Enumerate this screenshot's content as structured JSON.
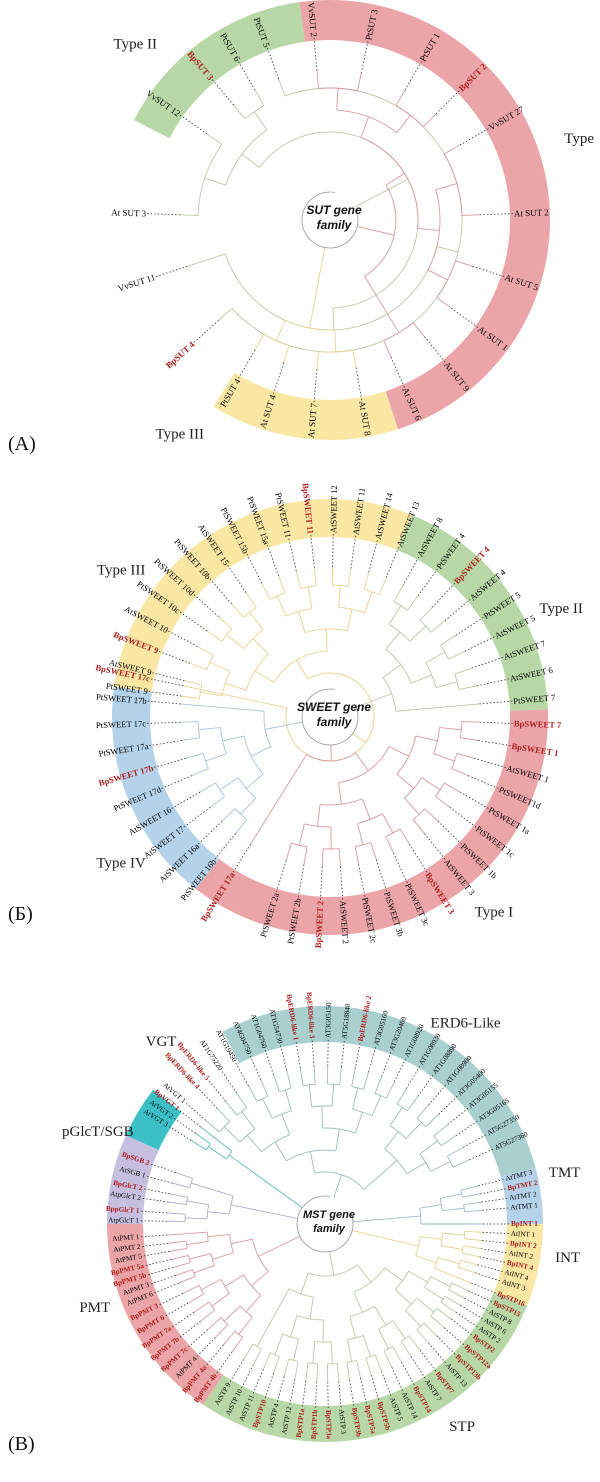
{
  "panels": [
    {
      "id": "A",
      "letter": "(A)",
      "center_label": [
        "SUT gene",
        "family"
      ],
      "colors": {
        "Type II": "#b7d8a6",
        "Type I": "#eba5a8",
        "Type III": "#fbe7a4"
      },
      "groups": [
        {
          "name": "Type II",
          "start": -63,
          "end": -8,
          "color": "#b7d8a6",
          "line": "#b9c9a8"
        },
        {
          "name": "Type",
          "start": -8,
          "end": 162,
          "color": "#eba5a8",
          "line": "#d99aa0"
        },
        {
          "name": "Type III",
          "start": 162,
          "end": 212,
          "color": "#fbe7a4",
          "line": "#e8d290"
        }
      ],
      "group_labels": [
        {
          "text": "Type II",
          "angle": -48
        },
        {
          "text": "Type",
          "angle": 72
        },
        {
          "text": "Type III",
          "angle": 215
        }
      ],
      "leaves": [
        {
          "label": "PtSUT 5",
          "angle": -20,
          "bp": false
        },
        {
          "label": "PtSUT 6",
          "angle": -30,
          "bp": false
        },
        {
          "label": "BpSUT 3",
          "angle": -40,
          "bp": true
        },
        {
          "label": "VvSUT 12",
          "angle": -55,
          "bp": false
        },
        {
          "label": "At SUT 3",
          "angle": -88,
          "bp": false
        },
        {
          "label": "VvSUT 2",
          "angle": -5,
          "bp": false
        },
        {
          "label": "PtSUT 3",
          "angle": 12,
          "bp": false
        },
        {
          "label": "PtSUT 1",
          "angle": 30,
          "bp": false
        },
        {
          "label": "BpSUT 2",
          "angle": 45,
          "bp": true
        },
        {
          "label": "VvSUT 27",
          "angle": 60,
          "bp": false
        },
        {
          "label": "At SUT 2",
          "angle": 88,
          "bp": false
        },
        {
          "label": "At SUT 5",
          "angle": 108,
          "bp": false
        },
        {
          "label": "At SUT 1",
          "angle": 126,
          "bp": false
        },
        {
          "label": "At SUT 9",
          "angle": 141,
          "bp": false
        },
        {
          "label": "At SUT 6",
          "angle": 156,
          "bp": false
        },
        {
          "label": "At SUT 8",
          "angle": 170,
          "bp": false
        },
        {
          "label": "At SUT 7",
          "angle": 185,
          "bp": false
        },
        {
          "label": "At SUT 4",
          "angle": 198,
          "bp": false
        },
        {
          "label": "PtSUT 4",
          "angle": 210,
          "bp": false
        },
        {
          "label": "BpSUT 4",
          "angle": 228,
          "bp": true
        },
        {
          "label": "VvSUT 11",
          "angle": 252,
          "bp": false
        }
      ]
    },
    {
      "id": "B",
      "letter": "(Б)",
      "center_label": [
        "SWEET gene",
        "family"
      ],
      "colors": {
        "Type III": "#fbe7a4",
        "Type II": "#b7d8a6",
        "Type I": "#eba5a8",
        "Type IV": "#b4d2ea"
      },
      "groups": [
        {
          "name": "Type III",
          "start": -82,
          "end": 22,
          "color": "#fbe7a4",
          "line": "#e8d290"
        },
        {
          "name": "Type II",
          "start": 22,
          "end": 88,
          "color": "#b7d8a6",
          "line": "#b9c9a8"
        },
        {
          "name": "Type I",
          "start": 88,
          "end": 218,
          "color": "#eba5a8",
          "line": "#d99aa0"
        },
        {
          "name": "Type IV",
          "start": 218,
          "end": 278,
          "color": "#b4d2ea",
          "line": "#a9c1d8"
        }
      ],
      "group_labels": [
        {
          "text": "Type III",
          "angle": -55
        },
        {
          "text": "Type II",
          "angle": 65
        },
        {
          "text": "Type I",
          "angle": 140
        },
        {
          "text": "Type IV",
          "angle": 235
        }
      ],
      "leaves": [
        {
          "label": "PtSWEET 9",
          "angle": -82,
          "bp": false
        },
        {
          "label": "AtSWEET 9",
          "angle": -76,
          "bp": false
        },
        {
          "label": "BpSWEET 9",
          "angle": -69,
          "bp": true
        },
        {
          "label": "AtSWEET 10",
          "angle": -62,
          "bp": false
        },
        {
          "label": "PtSWEET 10c",
          "angle": -55,
          "bp": false
        },
        {
          "label": "PtSWEET 10d",
          "angle": -48,
          "bp": false
        },
        {
          "label": "PtSWEET 10b",
          "angle": -41,
          "bp": false
        },
        {
          "label": "AtSWEET 15",
          "angle": -34,
          "bp": false
        },
        {
          "label": "PtSWEET 15b",
          "angle": -27,
          "bp": false
        },
        {
          "label": "PtSWEET 15a",
          "angle": -20,
          "bp": false
        },
        {
          "label": "PtSWEET 11",
          "angle": -13,
          "bp": false
        },
        {
          "label": "BpSWEET 11",
          "angle": -6,
          "bp": true
        },
        {
          "label": "AtSWEET 12",
          "angle": 1,
          "bp": false
        },
        {
          "label": "AtSWEET 11",
          "angle": 8,
          "bp": false
        },
        {
          "label": "AtSWEET 14",
          "angle": 15,
          "bp": false
        },
        {
          "label": "AtSWEET 13",
          "angle": 22,
          "bp": false
        },
        {
          "label": "AtSWEET 8",
          "angle": 29,
          "bp": false
        },
        {
          "label": "PtSWEET 4",
          "angle": 36,
          "bp": false
        },
        {
          "label": "BpSWEET 4",
          "angle": 43,
          "bp": true
        },
        {
          "label": "AtSWEET 4",
          "angle": 50,
          "bp": false
        },
        {
          "label": "PtSWEET 5",
          "angle": 57,
          "bp": false
        },
        {
          "label": "AtSWEET 5",
          "angle": 64,
          "bp": false
        },
        {
          "label": "AtSWEET 7",
          "angle": 71,
          "bp": false
        },
        {
          "label": "AtSWEET 6",
          "angle": 78,
          "bp": false
        },
        {
          "label": "PtSWEET 7",
          "angle": 85,
          "bp": false
        },
        {
          "label": "BpSWEET 7",
          "angle": 92,
          "bp": true
        },
        {
          "label": "BpSWEET 1",
          "angle": 99,
          "bp": true
        },
        {
          "label": "AtSWEET 1",
          "angle": 106,
          "bp": false
        },
        {
          "label": "PtSWEET1d",
          "angle": 113,
          "bp": false
        },
        {
          "label": "PtSWEET 1a",
          "angle": 120,
          "bp": false
        },
        {
          "label": "PtSWEET 1c",
          "angle": 127,
          "bp": false
        },
        {
          "label": "PtSWEET 1b",
          "angle": 134,
          "bp": false
        },
        {
          "label": "AtSWEET 3",
          "angle": 141,
          "bp": false
        },
        {
          "label": "BpSWEET 3",
          "angle": 148,
          "bp": true
        },
        {
          "label": "PtSWEET 3c",
          "angle": 155,
          "bp": false
        },
        {
          "label": "PtSWEET 3b",
          "angle": 162,
          "bp": false
        },
        {
          "label": "PtSWEET 2c",
          "angle": 169,
          "bp": false
        },
        {
          "label": "AtSWEET 2",
          "angle": 176,
          "bp": false
        },
        {
          "label": "BpSWEET 2",
          "angle": 183,
          "bp": true
        },
        {
          "label": "PtSWEET 2b",
          "angle": 190,
          "bp": false
        },
        {
          "label": "PtSWEET 2a",
          "angle": 197,
          "bp": false
        },
        {
          "label": "BpSWEET 17a",
          "angle": 212,
          "bp": true
        },
        {
          "label": "PtSWEET 16b",
          "angle": 219,
          "bp": false
        },
        {
          "label": "AtSWEET 16a",
          "angle": 226,
          "bp": false
        },
        {
          "label": "AtSWEET 17",
          "angle": 233,
          "bp": false
        },
        {
          "label": "AtSWEET 16",
          "angle": 240,
          "bp": false
        },
        {
          "label": "PtSWEET 17d",
          "angle": 247,
          "bp": false
        },
        {
          "label": "BpSWEET 17b",
          "angle": 254,
          "bp": true
        },
        {
          "label": "PtSWEET 17a",
          "angle": 261,
          "bp": false
        },
        {
          "label": "PtSWEET 17c",
          "angle": 268,
          "bp": false
        },
        {
          "label": "PtSWEET 17b",
          "angle": 275,
          "bp": false
        },
        {
          "label": "BpSWEET 17c",
          "angle": 282,
          "bp": true
        }
      ]
    },
    {
      "id": "C",
      "letter": "(B)",
      "center_label": [
        "MST gene",
        "family"
      ],
      "colors": {
        "ERD6-Like": "#a9cfcf",
        "TMT": "#b4d2ea",
        "INT": "#fbe7a4",
        "STP": "#b7d8a6",
        "PMT": "#eba5a8",
        "pGlcT/SGB": "#c7bfe0",
        "VGT": "#3cc0c8"
      },
      "groups": [
        {
          "name": "ERD6-Like",
          "start": -28,
          "end": 75,
          "color": "#a9cfcf",
          "line": "#9fbcbc"
        },
        {
          "name": "TMT",
          "start": 75,
          "end": 90,
          "color": "#b4d2ea",
          "line": "#9eb8d0"
        },
        {
          "name": "INT",
          "start": 90,
          "end": 112,
          "color": "#fbe7a4",
          "line": "#e8d290"
        },
        {
          "name": "STP",
          "start": 112,
          "end": 214,
          "color": "#b7d8a6",
          "line": "#b9c9a8"
        },
        {
          "name": "PMT",
          "start": 214,
          "end": 270,
          "color": "#eba5a8",
          "line": "#d99aa0"
        },
        {
          "name": "pGlcT/SGB",
          "start": 270,
          "end": 294,
          "color": "#c7bfe0",
          "line": "#b6a9d2"
        },
        {
          "name": "VGT",
          "start": 294,
          "end": 308,
          "color": "#3cc0c8",
          "line": "#5fb9b9"
        }
      ],
      "group_labels": [
        {
          "text": "ERD6-Like",
          "angle": 35
        },
        {
          "text": "TMT",
          "angle": 78
        },
        {
          "text": "INT",
          "angle": 98
        },
        {
          "text": "STP",
          "angle": 146
        },
        {
          "text": "PMT",
          "angle": 250
        },
        {
          "text": "pGlcT/SGB",
          "angle": 292
        },
        {
          "text": "VGT",
          "angle": 318
        }
      ],
      "leaves": [
        {
          "label": "AtVGT 3",
          "angle": -58,
          "bp": false
        },
        {
          "label": "AtVGT 2",
          "angle": -55,
          "bp": false
        },
        {
          "label": "BpVGT 1",
          "angle": -52,
          "bp": true
        },
        {
          "label": "AtVGT 1",
          "angle": -49,
          "bp": false
        },
        {
          "label": "BpERD6-like 4",
          "angle": -43,
          "bp": true
        },
        {
          "label": "BpERD6-like 5",
          "angle": -39,
          "bp": true
        },
        {
          "label": "AT1G75220",
          "angle": -34,
          "bp": false
        },
        {
          "label": "AT1G19450",
          "angle": -29,
          "bp": false
        },
        {
          "label": "AT4G04750",
          "angle": -24,
          "bp": false
        },
        {
          "label": "AT1G04760",
          "angle": -19,
          "bp": false
        },
        {
          "label": "AT1G54730",
          "angle": -14,
          "bp": false
        },
        {
          "label": "BpERD6-like 1",
          "angle": -9,
          "bp": true
        },
        {
          "label": "BpERD6-like 3",
          "angle": -4,
          "bp": true
        },
        {
          "label": "AT3G05150",
          "angle": 1,
          "bp": false
        },
        {
          "label": "AT5G18840",
          "angle": 6,
          "bp": false
        },
        {
          "label": "BpERD6-like 2",
          "angle": 11,
          "bp": true
        },
        {
          "label": "AT3G05160",
          "angle": 16,
          "bp": false
        },
        {
          "label": "AT3G20460",
          "angle": 21,
          "bp": false
        },
        {
          "label": "AT1G08920",
          "angle": 26,
          "bp": false
        },
        {
          "label": "AT1G08930",
          "angle": 31,
          "bp": false
        },
        {
          "label": "AT1G08890",
          "angle": 36,
          "bp": false
        },
        {
          "label": "AT1G08900",
          "angle": 41,
          "bp": false
        },
        {
          "label": "AT3G05400",
          "angle": 46,
          "bp": false
        },
        {
          "label": "AT3G05155",
          "angle": 51,
          "bp": false
        },
        {
          "label": "AT3G05165",
          "angle": 56,
          "bp": false
        },
        {
          "label": "AT5G27350",
          "angle": 61,
          "bp": false
        },
        {
          "label": "AT5G27360",
          "angle": 66,
          "bp": false
        },
        {
          "label": "AtTMT 3",
          "angle": 76,
          "bp": false
        },
        {
          "label": "BpTMT 2",
          "angle": 79,
          "bp": true
        },
        {
          "label": "AtTMT 2",
          "angle": 82,
          "bp": false
        },
        {
          "label": "AtTMT 1",
          "angle": 85,
          "bp": false
        },
        {
          "label": "BpINT 1",
          "angle": 90,
          "bp": true
        },
        {
          "label": "AtINT 1",
          "angle": 93,
          "bp": false
        },
        {
          "label": "BpINT 2",
          "angle": 96,
          "bp": true
        },
        {
          "label": "AtINT 2",
          "angle": 99,
          "bp": false
        },
        {
          "label": "BpINT 4",
          "angle": 102,
          "bp": true
        },
        {
          "label": "AtINT 4",
          "angle": 105,
          "bp": false
        },
        {
          "label": "AtINT 3",
          "angle": 108,
          "bp": false
        },
        {
          "label": "BpSTP16",
          "angle": 112,
          "bp": true
        },
        {
          "label": "BpSTP15",
          "angle": 115,
          "bp": true
        },
        {
          "label": "AtSTP 8",
          "angle": 118,
          "bp": false
        },
        {
          "label": "AtSTP 6",
          "angle": 121,
          "bp": false
        },
        {
          "label": "AtSTP 2",
          "angle": 124,
          "bp": false
        },
        {
          "label": "BpSTP2",
          "angle": 127,
          "bp": true
        },
        {
          "label": "BpSTP12a",
          "angle": 131,
          "bp": true
        },
        {
          "label": "BpSTP13b",
          "angle": 135,
          "bp": true
        },
        {
          "label": "AtSTP 13",
          "angle": 139,
          "bp": false
        },
        {
          "label": "BpSTP7",
          "angle": 143,
          "bp": true
        },
        {
          "label": "AtSTP 7",
          "angle": 147,
          "bp": false
        },
        {
          "label": "BpSTP14",
          "angle": 151,
          "bp": true
        },
        {
          "label": "AtSTP 14",
          "angle": 155,
          "bp": false
        },
        {
          "label": "AtSTP 5",
          "angle": 159,
          "bp": false
        },
        {
          "label": "BpSTP5b",
          "angle": 163,
          "bp": true
        },
        {
          "label": "BpSTP5a",
          "angle": 167,
          "bp": true
        },
        {
          "label": "BpSTP3b",
          "angle": 171,
          "bp": true
        },
        {
          "label": "AtSTP 3",
          "angle": 175,
          "bp": false
        },
        {
          "label": "BpSTP3a",
          "angle": 179,
          "bp": true
        },
        {
          "label": "BpSTP1b",
          "angle": 183,
          "bp": true
        },
        {
          "label": "BpSTP1a",
          "angle": 187,
          "bp": true
        },
        {
          "label": "AtSTP 12",
          "angle": 191,
          "bp": false
        },
        {
          "label": "AtSTP 4",
          "angle": 195,
          "bp": false
        },
        {
          "label": "BpSTP10",
          "angle": 199,
          "bp": true
        },
        {
          "label": "AtSTP 11",
          "angle": 203,
          "bp": false
        },
        {
          "label": "AtSTP 10",
          "angle": 207,
          "bp": false
        },
        {
          "label": "AtSTP 9",
          "angle": 211,
          "bp": false
        },
        {
          "label": "BpPMT 4b",
          "angle": 216,
          "bp": true
        },
        {
          "label": "BpPMT 4a",
          "angle": 220,
          "bp": true
        },
        {
          "label": "AtPMT 4",
          "angle": 224,
          "bp": false
        },
        {
          "label": "BpPMT 7c",
          "angle": 228,
          "bp": true
        },
        {
          "label": "BpPMT 7b",
          "angle": 232,
          "bp": true
        },
        {
          "label": "BpPMT 7a",
          "angle": 236,
          "bp": true
        },
        {
          "label": "BpPMT 6",
          "angle": 240,
          "bp": true
        },
        {
          "label": "BpPMT 3",
          "angle": 244,
          "bp": true
        },
        {
          "label": "AtPMT 6",
          "angle": 248,
          "bp": false
        },
        {
          "label": "AtPMT 3",
          "angle": 251,
          "bp": false
        },
        {
          "label": "BpPMT 5b",
          "angle": 254,
          "bp": true
        },
        {
          "label": "BpPMT 5a",
          "angle": 257,
          "bp": true
        },
        {
          "label": "AtPMT 5",
          "angle": 260,
          "bp": false
        },
        {
          "label": "AtPMT 2",
          "angle": 263,
          "bp": false
        },
        {
          "label": "AtPMT 1",
          "angle": 266,
          "bp": false
        },
        {
          "label": "AtpGlcT 1",
          "angle": 271,
          "bp": false
        },
        {
          "label": "BppGlcT 1",
          "angle": 274,
          "bp": true
        },
        {
          "label": "AtpGlcT 2",
          "angle": 278,
          "bp": false
        },
        {
          "label": "BpGlcT 2",
          "angle": 281,
          "bp": true
        },
        {
          "label": "AtSGB 1",
          "angle": 285,
          "bp": false
        },
        {
          "label": "BpSGB 2",
          "angle": 289,
          "bp": true
        }
      ]
    }
  ]
}
